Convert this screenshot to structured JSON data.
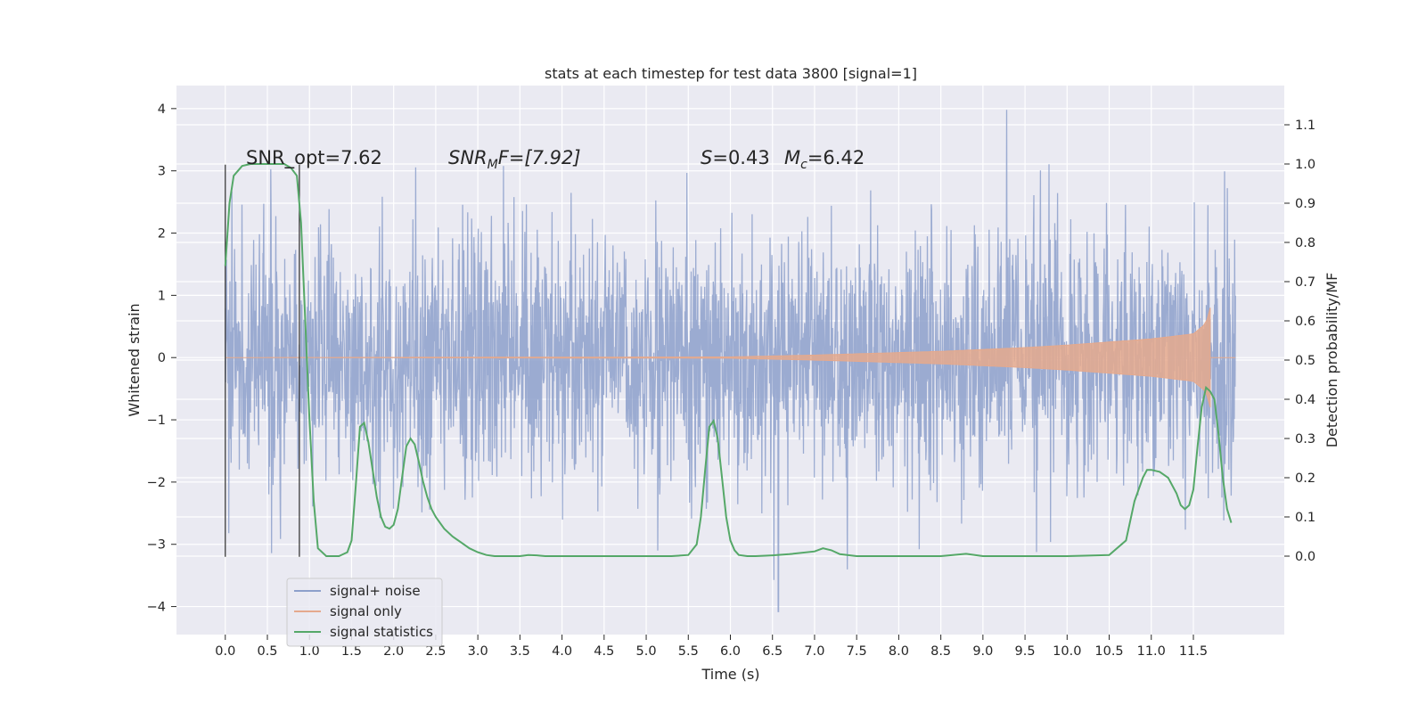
{
  "chart_data": {
    "type": "line",
    "title": "stats at each timestep for test data 3800 [signal=1]",
    "xlabel": "Time (s)",
    "ylabel": "Whitened strain",
    "ylabel_right": "Detection probability/MF",
    "xlim": [
      -0.58,
      12.58
    ],
    "ylim": [
      -4.45,
      4.37
    ],
    "ylim_right": [
      -0.2,
      1.2
    ],
    "x_ticks": [
      "0.0",
      "0.5",
      "1.0",
      "1.5",
      "2.0",
      "2.5",
      "3.0",
      "3.5",
      "4.0",
      "4.5",
      "5.0",
      "5.5",
      "6.0",
      "6.5",
      "7.0",
      "7.5",
      "8.0",
      "8.5",
      "9.0",
      "9.5",
      "10.0",
      "10.5",
      "11.0",
      "11.5"
    ],
    "y_ticks": [
      "4",
      "3",
      "2",
      "1",
      "0",
      "−1",
      "−2",
      "−3",
      "−4"
    ],
    "y_right_ticks": [
      "1.1",
      "1.0",
      "0.9",
      "0.8",
      "0.7",
      "0.6",
      "0.5",
      "0.4",
      "0.3",
      "0.2",
      "0.1",
      "0.0"
    ],
    "grid": true,
    "annotations": {
      "snr_opt": "SNR_opt=7.62",
      "snr_mf_name": "SNR",
      "snr_mf_sub": "M",
      "snr_mf_tail": "F=[7.92]",
      "s_name": "S",
      "s_value": "=0.43",
      "mc_name": "M",
      "mc_sub": "c",
      "mc_value": "=6.42"
    },
    "markers": {
      "vertical_lines_x": [
        0.0,
        0.88
      ],
      "vertical_lines_y": [
        -3.2,
        3.1
      ]
    },
    "series": [
      {
        "name": "signal+ noise",
        "color": "#8da0cb",
        "axis": "left",
        "x_range": [
          0.0,
          12.0
        ],
        "sigma": 1.0,
        "max_value": 3.98,
        "max_at": 9.28,
        "min_value": -4.08,
        "min_at": 6.57,
        "note_values": "dense noisy strain, approx. gaussian with unit std"
      },
      {
        "name": "signal only",
        "color": "#e5a98d",
        "axis": "left",
        "x_range": [
          0.0,
          12.0
        ],
        "envelope": {
          "t": [
            0.0,
            6.0,
            7.0,
            7.5,
            8.0,
            8.5,
            9.0,
            9.5,
            10.0,
            10.5,
            11.0,
            11.5,
            11.65,
            11.7
          ],
          "amp": [
            0.0,
            0.01,
            0.04,
            0.06,
            0.08,
            0.1,
            0.13,
            0.16,
            0.2,
            0.25,
            0.3,
            0.38,
            0.55,
            0.8
          ]
        },
        "ends_at": 11.7
      },
      {
        "name": "signal statistics",
        "color": "#55a868",
        "axis": "right",
        "x": [
          0.0,
          0.05,
          0.1,
          0.2,
          0.3,
          0.5,
          0.7,
          0.78,
          0.85,
          0.9,
          0.95,
          1.0,
          1.05,
          1.1,
          1.2,
          1.35,
          1.45,
          1.5,
          1.55,
          1.6,
          1.65,
          1.7,
          1.75,
          1.8,
          1.85,
          1.9,
          1.95,
          2.0,
          2.05,
          2.1,
          2.15,
          2.2,
          2.25,
          2.3,
          2.35,
          2.4,
          2.45,
          2.5,
          2.6,
          2.7,
          2.8,
          2.9,
          3.0,
          3.1,
          3.2,
          3.3,
          3.4,
          3.5,
          3.6,
          3.7,
          3.8,
          4.0,
          4.5,
          5.0,
          5.3,
          5.5,
          5.6,
          5.65,
          5.7,
          5.75,
          5.8,
          5.85,
          5.9,
          5.95,
          6.0,
          6.05,
          6.1,
          6.2,
          6.3,
          6.5,
          6.7,
          7.0,
          7.1,
          7.2,
          7.3,
          7.5,
          8.0,
          8.5,
          8.8,
          9.0,
          9.5,
          10.0,
          10.5,
          10.7,
          10.8,
          10.9,
          10.95,
          11.0,
          11.1,
          11.2,
          11.3,
          11.35,
          11.4,
          11.45,
          11.5,
          11.55,
          11.6,
          11.65,
          11.7,
          11.75,
          11.8,
          11.85,
          11.9,
          11.95
        ],
        "values": [
          0.74,
          0.9,
          0.97,
          0.995,
          1.0,
          1.0,
          1.0,
          0.99,
          0.97,
          0.85,
          0.6,
          0.35,
          0.14,
          0.02,
          0.0,
          0.0,
          0.01,
          0.04,
          0.18,
          0.33,
          0.34,
          0.29,
          0.22,
          0.15,
          0.1,
          0.075,
          0.07,
          0.08,
          0.12,
          0.2,
          0.28,
          0.3,
          0.285,
          0.24,
          0.19,
          0.15,
          0.12,
          0.1,
          0.07,
          0.05,
          0.035,
          0.02,
          0.01,
          0.003,
          0.0,
          0.0,
          0.0,
          0.0,
          0.003,
          0.002,
          0.0,
          0.0,
          0.0,
          0.0,
          0.0,
          0.003,
          0.03,
          0.1,
          0.22,
          0.33,
          0.345,
          0.3,
          0.2,
          0.1,
          0.04,
          0.015,
          0.003,
          0.0,
          0.0,
          0.002,
          0.005,
          0.012,
          0.02,
          0.015,
          0.005,
          0.0,
          0.0,
          0.0,
          0.006,
          0.0,
          0.0,
          0.0,
          0.003,
          0.04,
          0.14,
          0.2,
          0.22,
          0.22,
          0.215,
          0.2,
          0.16,
          0.13,
          0.12,
          0.13,
          0.17,
          0.28,
          0.38,
          0.43,
          0.42,
          0.4,
          0.31,
          0.2,
          0.12,
          0.085
        ]
      }
    ],
    "legend": {
      "position": "lower left"
    }
  }
}
